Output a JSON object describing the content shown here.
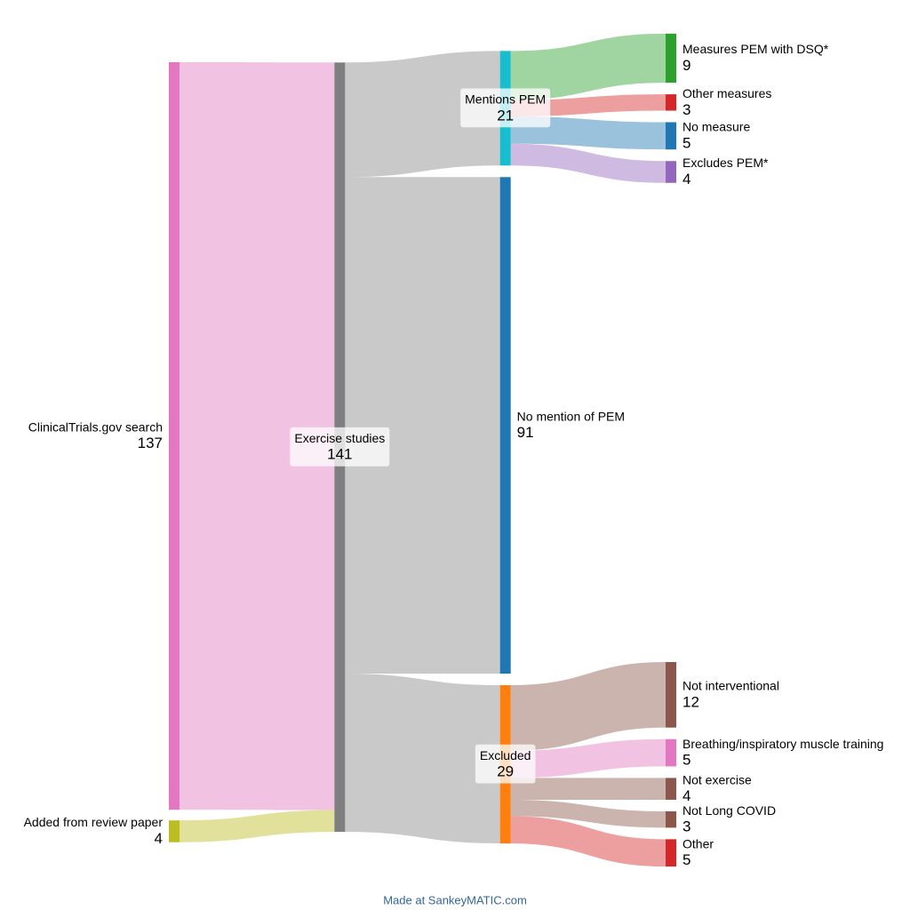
{
  "chart_data": {
    "type": "sankey",
    "nodes": [
      {
        "name": "ClinicalTrials.gov search",
        "value": 137,
        "color": "#e377c2"
      },
      {
        "name": "Added from review paper",
        "value": 4,
        "color": "#bcbd22"
      },
      {
        "name": "Exercise studies",
        "value": 141,
        "color": "#7f7f7f"
      },
      {
        "name": "Mentions PEM",
        "value": 21,
        "color": "#17becf"
      },
      {
        "name": "No mention of PEM",
        "value": 91,
        "color": "#1f77b4"
      },
      {
        "name": "Excluded",
        "value": 29,
        "color": "#ff7f0e"
      },
      {
        "name": "Measures PEM with DSQ*",
        "value": 9,
        "color": "#2ca02c"
      },
      {
        "name": "Other measures",
        "value": 3,
        "color": "#d62728"
      },
      {
        "name": "No measure",
        "value": 5,
        "color": "#1f77b4"
      },
      {
        "name": "Excludes PEM*",
        "value": 4,
        "color": "#9467bd"
      },
      {
        "name": "Not interventional",
        "value": 12,
        "color": "#8c564b"
      },
      {
        "name": "Breathing/inspiratory muscle training",
        "value": 5,
        "color": "#e377c2"
      },
      {
        "name": "Not exercise",
        "value": 4,
        "color": "#8c564b"
      },
      {
        "name": "Not Long COVID",
        "value": 3,
        "color": "#8c564b"
      },
      {
        "name": "Other",
        "value": 5,
        "color": "#d62728"
      }
    ],
    "links": [
      {
        "source": 0,
        "target": 2,
        "value": 137,
        "color": "#e377c2"
      },
      {
        "source": 1,
        "target": 2,
        "value": 4,
        "color": "#bcbd22"
      },
      {
        "source": 2,
        "target": 3,
        "value": 21,
        "color": "#888888"
      },
      {
        "source": 2,
        "target": 4,
        "value": 91,
        "color": "#888888"
      },
      {
        "source": 2,
        "target": 5,
        "value": 29,
        "color": "#888888"
      },
      {
        "source": 3,
        "target": 6,
        "value": 9,
        "color": "#2ca02c"
      },
      {
        "source": 3,
        "target": 7,
        "value": 3,
        "color": "#d62728"
      },
      {
        "source": 3,
        "target": 8,
        "value": 5,
        "color": "#1f77b4"
      },
      {
        "source": 3,
        "target": 9,
        "value": 4,
        "color": "#9467bd"
      },
      {
        "source": 5,
        "target": 10,
        "value": 12,
        "color": "#8c564b"
      },
      {
        "source": 5,
        "target": 11,
        "value": 5,
        "color": "#e377c2"
      },
      {
        "source": 5,
        "target": 12,
        "value": 4,
        "color": "#8c564b"
      },
      {
        "source": 5,
        "target": 13,
        "value": 3,
        "color": "#8c564b"
      },
      {
        "source": 5,
        "target": 14,
        "value": 5,
        "color": "#d62728"
      }
    ],
    "footer": "Made at SankeyMATIC.com"
  }
}
